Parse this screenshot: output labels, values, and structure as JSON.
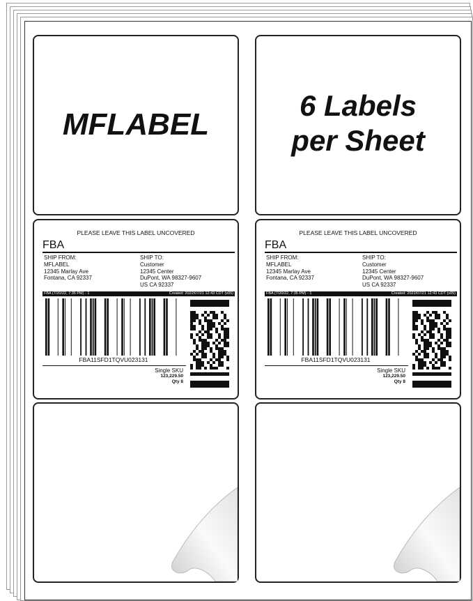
{
  "brand_label": "MFLABEL",
  "tagline": [
    "6 Labels",
    "per Sheet"
  ],
  "shipping_labels": [
    {
      "notice": "PLEASE LEAVE THIS LABEL UNCOVERED",
      "program": "FBA",
      "ship_from_heading": "SHIP FROM:",
      "ship_from": [
        "MFLABEL",
        "12345 Marlay Ave",
        "Fontana, CA 92337"
      ],
      "ship_to_heading": "SHIP TO:",
      "ship_to": [
        "Customer",
        "12345 Center",
        "DuPont, WA 98327-9607",
        "US CA 92337"
      ],
      "bar_left": "FBA (7/20/22, 7:35 PM) - 1",
      "bar_right": "Created: 2022/07/21 12:43 CDT (v05)",
      "barcode_text": "FBA11SFD1TQVU023131",
      "sku_lines": [
        "Single SKU",
        "123,229.50",
        "Qty 8"
      ]
    },
    {
      "notice": "PLEASE LEAVE THIS LABEL UNCOVERED",
      "program": "FBA",
      "ship_from_heading": "SHIP FROM:",
      "ship_from": [
        "MFLABEL",
        "12345 Marlay Ave",
        "Fontana, CA 92337"
      ],
      "ship_to_heading": "SHIP TO:",
      "ship_to": [
        "Customer",
        "12345 Center",
        "DuPont, WA 98327-9607",
        "US CA 92337"
      ],
      "bar_left": "FBA (7/20/22, 7:35 PM) - 1",
      "bar_right": "Created: 2022/07/21 12:43 CDT (v05)",
      "barcode_text": "FBA11SFD1TQVU023131",
      "sku_lines": [
        "Single SKU",
        "123,229.50",
        "Qty 8"
      ]
    }
  ]
}
